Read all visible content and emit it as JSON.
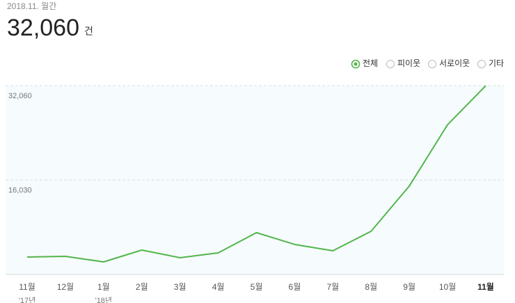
{
  "header": {
    "period": "2018.11. 월간",
    "total": "32,060",
    "unit": "건"
  },
  "filter": {
    "options": [
      "전체",
      "피이웃",
      "서로이웃",
      "기타"
    ],
    "selected": 0
  },
  "chart_data": {
    "type": "line",
    "categories": [
      "11월",
      "12월",
      "1월",
      "2월",
      "3월",
      "4월",
      "5월",
      "6월",
      "7월",
      "8월",
      "9월",
      "10월",
      "11월"
    ],
    "x_sublabels": [
      "'17년",
      null,
      "'18년",
      null,
      null,
      null,
      null,
      null,
      null,
      null,
      null,
      null,
      null
    ],
    "values": [
      2960,
      3080,
      2130,
      4140,
      2840,
      3670,
      7100,
      5090,
      4020,
      7330,
      15020,
      25430,
      32060
    ],
    "color": "#52b54b",
    "ylim": [
      0,
      32060
    ],
    "yticks": [
      {
        "value": 16030,
        "label": "16,030"
      },
      {
        "value": 32060,
        "label": "32,060"
      }
    ],
    "grid": true
  }
}
